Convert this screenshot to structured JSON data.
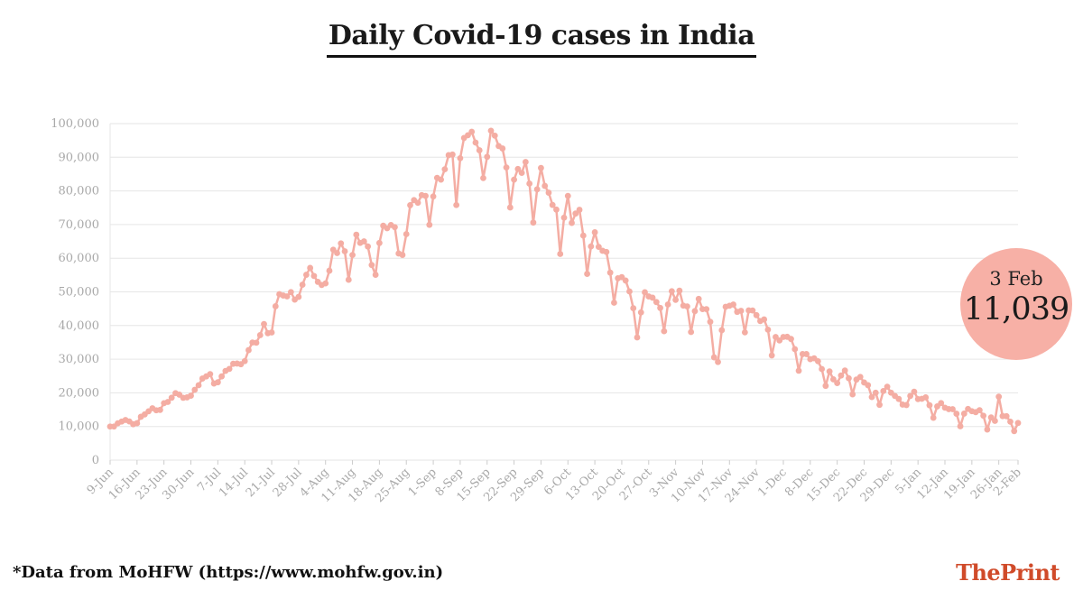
{
  "title": "Daily Covid-19 cases in India",
  "footnote": "*Data from MoHFW (https://www.mohfw.gov.in)",
  "brand": {
    "part1": "The",
    "part2": "Print"
  },
  "callout": {
    "date": "3 Feb",
    "value": "11,039"
  },
  "colors": {
    "line": "#f4ada3",
    "marker": "#f4ada3",
    "callout": "#f7b0a6",
    "grid": "#e6e6e6",
    "brand": "#d04b2a"
  },
  "chart_data": {
    "type": "line",
    "title": "Daily Covid-19 cases in India",
    "xlabel": "",
    "ylabel": "",
    "ylim": [
      0,
      100000
    ],
    "yticks": [
      0,
      10000,
      20000,
      30000,
      40000,
      50000,
      60000,
      70000,
      80000,
      90000,
      100000
    ],
    "ytick_labels": [
      "0",
      "10,000",
      "20,000",
      "30,000",
      "40,000",
      "50,000",
      "60,000",
      "70,000",
      "80,000",
      "90,000",
      "100,000"
    ],
    "xtick_labels": [
      "9-Jun",
      "16-Jun",
      "23-Jun",
      "30-Jun",
      "7-Jul",
      "14-Jul",
      "21-Jul",
      "28-Jul",
      "4-Aug",
      "11-Aug",
      "18-Aug",
      "25-Aug",
      "1-Sep",
      "8-Sep",
      "15-Sep",
      "22-Sep",
      "29-Sep",
      "6-Oct",
      "13-Oct",
      "20-Oct",
      "27-Oct",
      "3-Nov",
      "10-Nov",
      "17-Nov",
      "24-Nov",
      "1-Dec",
      "8-Dec",
      "15-Dec",
      "22-Dec",
      "29-Dec",
      "5-Jan",
      "12-Jan",
      "19-Jan",
      "26-Jan",
      "2-Feb"
    ],
    "grid": true,
    "x_start": "9-Jun",
    "x_end": "3-Feb",
    "values": [
      9985,
      9987,
      10956,
      11458,
      11929,
      11502,
      10667,
      10974,
      12881,
      13586,
      14516,
      15413,
      14821,
      14933,
      16922,
      17296,
      18552,
      19906,
      19459,
      18522,
      18653,
      19148,
      20903,
      22252,
      24248,
      24879,
      25566,
      22771,
      23135,
      24880,
      26506,
      27114,
      28637,
      28701,
      28498,
      29429,
      32695,
      34956,
      34884,
      37148,
      40425,
      37724,
      37927,
      45720,
      49310,
      48916,
      48661,
      49931,
      47704,
      48513,
      52123,
      55079,
      57118,
      54735,
      52972,
      52050,
      52509,
      56282,
      62538,
      61537,
      64399,
      62064,
      53601,
      60963,
      66999,
      64553,
      65002,
      63490,
      57981,
      55079,
      64531,
      69652,
      68900,
      69878,
      69239,
      61408,
      60975,
      67151,
      75760,
      77266,
      76472,
      78761,
      78512,
      69921,
      78357,
      83883,
      83341,
      86432,
      90632,
      90802,
      75809,
      89706,
      95735,
      96551,
      97570,
      94372,
      92071,
      83809,
      90123,
      97894,
      96424,
      93337,
      92605,
      86961,
      75083,
      83347,
      86508,
      85362,
      88600,
      82170,
      70589,
      80472,
      86821,
      81484,
      79476,
      75829,
      74442,
      61267,
      72049,
      78524,
      70496,
      73272,
      74383,
      66732,
      55342,
      63509,
      67708,
      63371,
      62212,
      61871,
      55722,
      46790,
      54044,
      54366,
      53370,
      50129,
      45149,
      36469,
      43893,
      49881,
      48648,
      48268,
      46963,
      45231,
      38310,
      46253,
      50210,
      47638,
      50356,
      45903,
      45674,
      38073,
      44281,
      47905,
      44879,
      44878,
      41100,
      30548,
      29164,
      38617,
      45576,
      45882,
      46232,
      44059,
      44376,
      37975,
      44489,
      44472,
      43082,
      41322,
      41810,
      38772,
      31118,
      36604,
      35551,
      36595,
      36652,
      36011,
      32981,
      26567,
      31521,
      31522,
      30006,
      30254,
      29398,
      27071,
      22065,
      26382,
      24010,
      22889,
      25153,
      26624,
      24337,
      19556,
      23950,
      24712,
      23068,
      22273,
      18732,
      20021,
      16432,
      20549,
      21822,
      20035,
      19079,
      18177,
      16504,
      16375,
      19078,
      20346,
      18139,
      18222,
      18645,
      16311,
      12584,
      15968,
      16946,
      15590,
      15158,
      15144,
      13788,
      10064,
      13823,
      15223,
      14545,
      14256,
      14849,
      13203,
      9102,
      12689,
      11666,
      18855,
      13083,
      13052,
      11427,
      8635,
      11039
    ]
  }
}
